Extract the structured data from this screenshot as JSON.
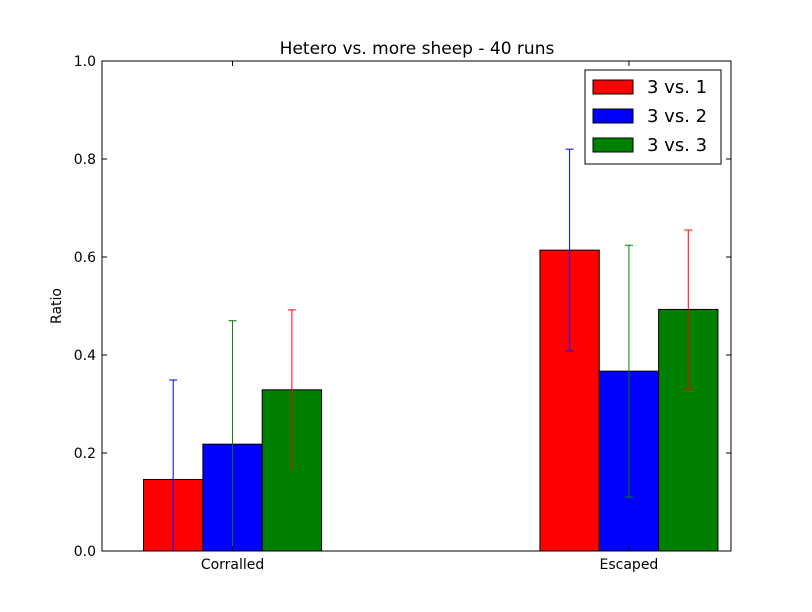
{
  "chart_data": {
    "type": "bar",
    "title": "Hetero vs. more sheep - 40 runs",
    "xlabel": "",
    "ylabel": "Ratio",
    "ylim": [
      0.0,
      1.0
    ],
    "yticks": [
      "0.0",
      "0.2",
      "0.4",
      "0.6",
      "0.8",
      "1.0"
    ],
    "categories": [
      "Corralled",
      "Escaped"
    ],
    "grid": false,
    "legend_position": "top-right",
    "series": [
      {
        "name": "3 vs. 1",
        "color": "#ff0000",
        "error_color": "#0000ff",
        "values": [
          0.146,
          0.614
        ],
        "errors": [
          0.203,
          0.206
        ]
      },
      {
        "name": "3 vs. 2",
        "color": "#0000ff",
        "error_color": "#008000",
        "values": [
          0.218,
          0.367
        ],
        "errors": [
          0.252,
          0.257
        ]
      },
      {
        "name": "3 vs. 3",
        "color": "#008000",
        "error_color": "#ff0000",
        "values": [
          0.329,
          0.493
        ],
        "errors": [
          0.163,
          0.162
        ]
      }
    ]
  }
}
